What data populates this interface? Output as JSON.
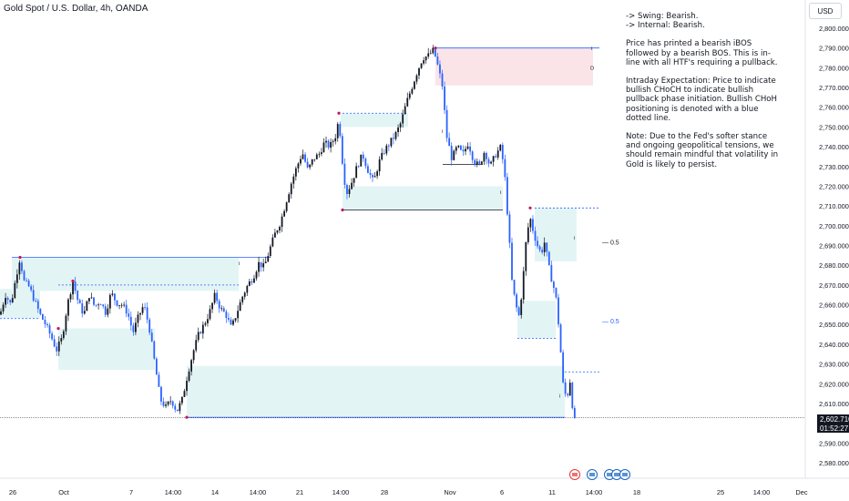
{
  "header": {
    "title": "Gold Spot / U.S. Dollar, 4h, OANDA"
  },
  "currency": "USD",
  "notes": {
    "swing": "-> Swing:  Bearish.",
    "internal": "-> Internal:  Bearish.",
    "p1": "Price has printed a bearish iBOS followed by a bearish BOS.  This is in-line with all HTF's requiring a pullback.",
    "p2": "Intraday Expectation: Price to indicate bullish CHoCH to indicate bullish pullback phase initiation.  Bullish CHoH positioning is denoted with a blue dotted line.",
    "p3": "Note: Due to the Fed's softer stance and ongoing geopolitical tensions, we should remain mindful that volatility in Gold is likely to persist."
  },
  "price_label": {
    "price": "2,602.710",
    "countdown": "01:52:27"
  },
  "fib_labels": {
    "upper": "0.5",
    "lower": "0.5"
  },
  "chart_data": {
    "type": "candlestick",
    "title": "Gold Spot / U.S. Dollar, 4h, OANDA",
    "y_axis": {
      "ticks": [
        2580,
        2590,
        2600,
        2610,
        2620,
        2630,
        2640,
        2650,
        2660,
        2670,
        2680,
        2690,
        2700,
        2710,
        2720,
        2730,
        2740,
        2750,
        2760,
        2770,
        2780,
        2790,
        2800
      ],
      "tick_labels": [
        "2,580.000",
        "2,590.000",
        "2,600.000",
        "2,610.000",
        "2,620.000",
        "2,630.000",
        "2,640.000",
        "2,650.000",
        "2,660.000",
        "2,670.000",
        "2,680.000",
        "2,690.000",
        "2,700.000",
        "2,710.000",
        "2,720.000",
        "2,730.000",
        "2,740.000",
        "2,750.000",
        "2,760.000",
        "2,770.000",
        "2,780.000",
        "2,790.000",
        "2,800.000"
      ],
      "range": [
        2576,
        2806
      ]
    },
    "x_axis": {
      "tick_labels": [
        "26",
        "Oct",
        "7",
        "14:00",
        "14",
        "14:00",
        "21",
        "14:00",
        "28",
        "Nov",
        "6",
        "11",
        "14:00",
        "18",
        "25",
        "14:00",
        "Dec"
      ]
    },
    "last_price": 2602.71,
    "path_points": [
      [
        0,
        2655
      ],
      [
        6,
        2665
      ],
      [
        12,
        2660
      ],
      [
        18,
        2675
      ],
      [
        22,
        2684
      ],
      [
        26,
        2672
      ],
      [
        32,
        2669
      ],
      [
        38,
        2662
      ],
      [
        44,
        2655
      ],
      [
        50,
        2650
      ],
      [
        56,
        2644
      ],
      [
        62,
        2637
      ],
      [
        68,
        2643
      ],
      [
        74,
        2660
      ],
      [
        80,
        2672
      ],
      [
        86,
        2661
      ],
      [
        92,
        2655
      ],
      [
        98,
        2665
      ],
      [
        104,
        2659
      ],
      [
        110,
        2662
      ],
      [
        116,
        2656
      ],
      [
        122,
        2666
      ],
      [
        128,
        2661
      ],
      [
        134,
        2660
      ],
      [
        140,
        2656
      ],
      [
        146,
        2646
      ],
      [
        152,
        2654
      ],
      [
        158,
        2660
      ],
      [
        164,
        2648
      ],
      [
        170,
        2630
      ],
      [
        176,
        2612
      ],
      [
        182,
        2608
      ],
      [
        188,
        2612
      ],
      [
        194,
        2606
      ],
      [
        200,
        2612
      ],
      [
        206,
        2625
      ],
      [
        212,
        2636
      ],
      [
        218,
        2645
      ],
      [
        224,
        2650
      ],
      [
        230,
        2656
      ],
      [
        236,
        2665
      ],
      [
        242,
        2658
      ],
      [
        248,
        2655
      ],
      [
        254,
        2648
      ],
      [
        260,
        2656
      ],
      [
        266,
        2664
      ],
      [
        272,
        2670
      ],
      [
        278,
        2674
      ],
      [
        284,
        2681
      ],
      [
        290,
        2679
      ],
      [
        296,
        2688
      ],
      [
        302,
        2696
      ],
      [
        308,
        2702
      ],
      [
        314,
        2712
      ],
      [
        320,
        2722
      ],
      [
        326,
        2730
      ],
      [
        332,
        2737
      ],
      [
        338,
        2728
      ],
      [
        344,
        2734
      ],
      [
        350,
        2736
      ],
      [
        356,
        2742
      ],
      [
        362,
        2740
      ],
      [
        368,
        2745
      ],
      [
        372,
        2754
      ],
      [
        376,
        2732
      ],
      [
        380,
        2716
      ],
      [
        386,
        2722
      ],
      [
        392,
        2730
      ],
      [
        398,
        2736
      ],
      [
        404,
        2728
      ],
      [
        410,
        2722
      ],
      [
        416,
        2732
      ],
      [
        422,
        2738
      ],
      [
        428,
        2742
      ],
      [
        434,
        2746
      ],
      [
        440,
        2752
      ],
      [
        446,
        2762
      ],
      [
        452,
        2770
      ],
      [
        458,
        2778
      ],
      [
        464,
        2785
      ],
      [
        470,
        2786
      ],
      [
        476,
        2789
      ],
      [
        480,
        2782
      ],
      [
        486,
        2770
      ],
      [
        490,
        2746
      ],
      [
        496,
        2734
      ],
      [
        502,
        2740
      ],
      [
        508,
        2736
      ],
      [
        514,
        2742
      ],
      [
        520,
        2733
      ],
      [
        526,
        2730
      ],
      [
        532,
        2738
      ],
      [
        538,
        2730
      ],
      [
        544,
        2736
      ],
      [
        550,
        2740
      ],
      [
        554,
        2726
      ],
      [
        558,
        2700
      ],
      [
        562,
        2672
      ],
      [
        566,
        2660
      ],
      [
        570,
        2654
      ],
      [
        574,
        2672
      ],
      [
        578,
        2695
      ],
      [
        582,
        2704
      ],
      [
        586,
        2696
      ],
      [
        590,
        2690
      ],
      [
        594,
        2686
      ],
      [
        598,
        2692
      ],
      [
        602,
        2680
      ],
      [
        606,
        2672
      ],
      [
        610,
        2665
      ],
      [
        614,
        2646
      ],
      [
        618,
        2620
      ],
      [
        622,
        2612
      ],
      [
        626,
        2622
      ],
      [
        630,
        2600
      ],
      [
        632,
        2602.71
      ]
    ],
    "zones": [
      {
        "type": "demand",
        "x0": 13,
        "x1": 262,
        "top": 2684,
        "bottom": 2667
      },
      {
        "type": "demand",
        "x0": 0,
        "x1": 44,
        "top": 2668,
        "bottom": 2653
      },
      {
        "type": "demand",
        "x0": 64,
        "x1": 170,
        "top": 2648,
        "bottom": 2627
      },
      {
        "type": "demand",
        "x0": 205,
        "x1": 620,
        "top": 2629,
        "bottom": 2603
      },
      {
        "type": "demand",
        "x0": 376,
        "x1": 552,
        "top": 2720,
        "bottom": 2708
      },
      {
        "type": "demand",
        "x0": 374,
        "x1": 448,
        "top": 2757,
        "bottom": 2750
      },
      {
        "type": "demand",
        "x0": 568,
        "x1": 610,
        "top": 2662,
        "bottom": 2643
      },
      {
        "type": "demand",
        "x0": 587,
        "x1": 633,
        "top": 2709,
        "bottom": 2682
      },
      {
        "type": "supply",
        "x0": 478,
        "x1": 651,
        "top": 2790,
        "bottom": 2771
      }
    ],
    "lines": [
      {
        "style": "solid",
        "color": "#2962ff",
        "x0": 13,
        "x1": 297,
        "y": 2684
      },
      {
        "style": "solid",
        "color": "#2962ff",
        "x0": 478,
        "x1": 658,
        "y": 2790
      },
      {
        "style": "solid",
        "color": "#2962ff",
        "x0": 205,
        "x1": 620,
        "y": 2603
      },
      {
        "style": "dotted",
        "color": "#2962ff",
        "x0": 0,
        "x1": 44,
        "y": 2653
      },
      {
        "style": "dotted",
        "color": "#2962ff",
        "x0": 64,
        "x1": 262,
        "y": 2670
      },
      {
        "style": "dotted",
        "color": "#2962ff",
        "x0": 376,
        "x1": 448,
        "y": 2757
      },
      {
        "style": "dotted",
        "color": "#2962ff",
        "x0": 587,
        "x1": 658,
        "y": 2709
      },
      {
        "style": "dotted",
        "color": "#2962ff",
        "x0": 568,
        "x1": 610,
        "y": 2643
      },
      {
        "style": "dotted",
        "color": "#2962ff",
        "x0": 620,
        "x1": 658,
        "y": 2626
      },
      {
        "style": "solid",
        "color": "#131722",
        "x0": 376,
        "x1": 552,
        "y": 2708
      },
      {
        "style": "solid",
        "color": "#131722",
        "x0": 486,
        "x1": 530,
        "y": 2731
      }
    ],
    "colors": {
      "up": "#131722",
      "down": "#2962ff",
      "demand": "#e3f4f4",
      "supply": "#fbe4e7",
      "grid": "#f0f3fa"
    }
  }
}
